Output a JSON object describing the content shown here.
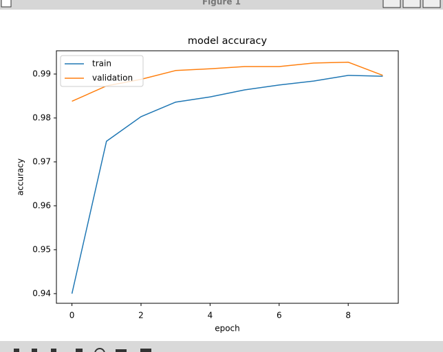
{
  "window": {
    "title": "Figure 1"
  },
  "chart_data": {
    "type": "line",
    "title": "model accuracy",
    "xlabel": "epoch",
    "ylabel": "accuracy",
    "x": [
      0,
      1,
      2,
      3,
      4,
      5,
      6,
      7,
      8,
      9
    ],
    "series": [
      {
        "name": "train",
        "color": "#1f77b4",
        "values": [
          0.94,
          0.9747,
          0.9803,
          0.9836,
          0.9848,
          0.9864,
          0.9875,
          0.9884,
          0.9897,
          0.9895
        ]
      },
      {
        "name": "validation",
        "color": "#ff7f0e",
        "values": [
          0.9838,
          0.9873,
          0.9888,
          0.9908,
          0.9912,
          0.9917,
          0.9917,
          0.9925,
          0.9927,
          0.9897
        ]
      }
    ],
    "xlim": [
      -0.45,
      9.45
    ],
    "xticks": [
      0,
      2,
      4,
      6,
      8
    ],
    "ylim": [
      0.9378,
      0.9953
    ],
    "yticks": [
      0.94,
      0.95,
      0.96,
      0.97,
      0.98,
      0.99
    ],
    "grid": false,
    "legend": "upper left"
  }
}
